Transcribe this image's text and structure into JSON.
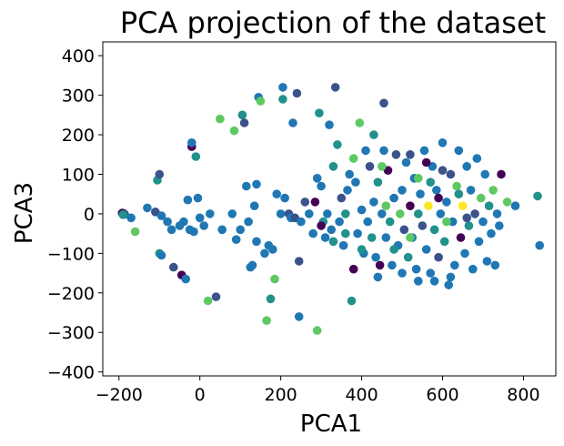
{
  "chart_data": {
    "type": "scatter",
    "title": "PCA projection of the dataset",
    "xlabel": "PCA1",
    "ylabel": "PCA3",
    "xlim": [
      -240,
      880
    ],
    "ylim": [
      -410,
      435
    ],
    "xticks": [
      -200,
      0,
      200,
      400,
      600,
      800
    ],
    "yticks": [
      -400,
      -300,
      -200,
      -100,
      0,
      100,
      200,
      300,
      400
    ],
    "xtick_labels": [
      "−200",
      "0",
      "200",
      "400",
      "600",
      "800"
    ],
    "ytick_labels": [
      "−400",
      "−300",
      "−200",
      "−100",
      "0",
      "100",
      "200",
      "300",
      "400"
    ],
    "grid": false,
    "colormap": "viridis",
    "colors": {
      "dark_purple": "#440154",
      "indigo": "#3b528b",
      "blue": "#1f77b4",
      "teal": "#21918c",
      "green": "#5ec962",
      "yellow": "#fde725"
    },
    "points": [
      [
        -190,
        0,
        1
      ],
      [
        -188,
        1,
        2
      ],
      [
        -186,
        -1,
        1
      ],
      [
        -192,
        2,
        0
      ],
      [
        -190,
        -2,
        3
      ],
      [
        -170,
        -10,
        2
      ],
      [
        -160,
        -45,
        4
      ],
      [
        -130,
        15,
        2
      ],
      [
        -110,
        5,
        1
      ],
      [
        -105,
        85,
        3
      ],
      [
        -100,
        100,
        1
      ],
      [
        -95,
        -5,
        2
      ],
      [
        -100,
        -100,
        3
      ],
      [
        -95,
        -105,
        2
      ],
      [
        -80,
        -20,
        2
      ],
      [
        -70,
        -40,
        2
      ],
      [
        -65,
        -135,
        1
      ],
      [
        -50,
        -30,
        2
      ],
      [
        -45,
        -155,
        0
      ],
      [
        -40,
        -20,
        2
      ],
      [
        -35,
        -165,
        2
      ],
      [
        -30,
        35,
        2
      ],
      [
        -25,
        -40,
        2
      ],
      [
        -20,
        170,
        0
      ],
      [
        -20,
        180,
        2
      ],
      [
        -15,
        -45,
        2
      ],
      [
        -10,
        145,
        3
      ],
      [
        -5,
        40,
        2
      ],
      [
        0,
        -10,
        2
      ],
      [
        10,
        -30,
        2
      ],
      [
        20,
        -220,
        4
      ],
      [
        25,
        0,
        2
      ],
      [
        40,
        -210,
        1
      ],
      [
        50,
        240,
        4
      ],
      [
        55,
        -40,
        2
      ],
      [
        80,
        0,
        2
      ],
      [
        85,
        210,
        4
      ],
      [
        90,
        -65,
        2
      ],
      [
        100,
        -40,
        2
      ],
      [
        105,
        250,
        3
      ],
      [
        110,
        230,
        1
      ],
      [
        115,
        70,
        2
      ],
      [
        120,
        -20,
        2
      ],
      [
        125,
        -135,
        2
      ],
      [
        130,
        -130,
        2
      ],
      [
        135,
        20,
        2
      ],
      [
        140,
        -70,
        2
      ],
      [
        145,
        295,
        2
      ],
      [
        150,
        285,
        4
      ],
      [
        140,
        75,
        2
      ],
      [
        160,
        -100,
        2
      ],
      [
        165,
        -270,
        4
      ],
      [
        170,
        -80,
        2
      ],
      [
        175,
        -215,
        3
      ],
      [
        180,
        -90,
        2
      ],
      [
        185,
        -165,
        4
      ],
      [
        190,
        50,
        2
      ],
      [
        200,
        0,
        2
      ],
      [
        205,
        320,
        2
      ],
      [
        205,
        290,
        3
      ],
      [
        210,
        40,
        2
      ],
      [
        220,
        0,
        1
      ],
      [
        225,
        -10,
        2
      ],
      [
        230,
        230,
        2
      ],
      [
        235,
        -10,
        1
      ],
      [
        240,
        305,
        1
      ],
      [
        245,
        -260,
        2
      ],
      [
        245,
        -120,
        1
      ],
      [
        250,
        -20,
        2
      ],
      [
        260,
        30,
        1
      ],
      [
        270,
        0,
        2
      ],
      [
        280,
        -50,
        2
      ],
      [
        285,
        30,
        0
      ],
      [
        290,
        -295,
        4
      ],
      [
        295,
        255,
        3
      ],
      [
        300,
        70,
        2
      ],
      [
        305,
        -20,
        3
      ],
      [
        310,
        -60,
        2
      ],
      [
        315,
        0,
        2
      ],
      [
        320,
        225,
        2
      ],
      [
        325,
        -40,
        2
      ],
      [
        330,
        -70,
        3
      ],
      [
        335,
        320,
        1
      ],
      [
        340,
        175,
        3
      ],
      [
        345,
        -20,
        2
      ],
      [
        350,
        40,
        1
      ],
      [
        355,
        -80,
        2
      ],
      [
        360,
        0,
        3
      ],
      [
        365,
        60,
        2
      ],
      [
        370,
        100,
        2
      ],
      [
        375,
        -220,
        3
      ],
      [
        380,
        140,
        4
      ],
      [
        380,
        -140,
        0
      ],
      [
        385,
        80,
        2
      ],
      [
        390,
        -50,
        2
      ],
      [
        395,
        230,
        4
      ],
      [
        400,
        10,
        2
      ],
      [
        405,
        -100,
        2
      ],
      [
        410,
        160,
        2
      ],
      [
        415,
        -20,
        2
      ],
      [
        420,
        120,
        1
      ],
      [
        425,
        -60,
        3
      ],
      [
        430,
        30,
        2
      ],
      [
        435,
        -110,
        2
      ],
      [
        440,
        80,
        3
      ],
      [
        445,
        -130,
        0
      ],
      [
        450,
        0,
        2
      ],
      [
        455,
        160,
        2
      ],
      [
        455,
        280,
        1
      ],
      [
        460,
        -60,
        2
      ],
      [
        465,
        110,
        0
      ],
      [
        470,
        -20,
        3
      ],
      [
        475,
        -130,
        2
      ],
      [
        480,
        40,
        2
      ],
      [
        485,
        150,
        1
      ],
      [
        490,
        -80,
        2
      ],
      [
        495,
        0,
        4
      ],
      [
        500,
        60,
        2
      ],
      [
        505,
        -40,
        1
      ],
      [
        510,
        130,
        2
      ],
      [
        515,
        -110,
        3
      ],
      [
        520,
        20,
        0
      ],
      [
        525,
        -60,
        2
      ],
      [
        530,
        90,
        2
      ],
      [
        535,
        -140,
        2
      ],
      [
        540,
        0,
        3
      ],
      [
        545,
        50,
        2
      ],
      [
        550,
        -30,
        1
      ],
      [
        555,
        160,
        2
      ],
      [
        560,
        -90,
        2
      ],
      [
        565,
        20,
        5
      ],
      [
        570,
        -150,
        2
      ],
      [
        575,
        120,
        2
      ],
      [
        580,
        -40,
        3
      ],
      [
        585,
        60,
        2
      ],
      [
        590,
        -110,
        1
      ],
      [
        595,
        0,
        2
      ],
      [
        600,
        180,
        2
      ],
      [
        605,
        -70,
        3
      ],
      [
        610,
        30,
        2
      ],
      [
        615,
        -180,
        2
      ],
      [
        620,
        100,
        1
      ],
      [
        625,
        -20,
        2
      ],
      [
        630,
        -130,
        2
      ],
      [
        635,
        70,
        4
      ],
      [
        640,
        160,
        2
      ],
      [
        645,
        -60,
        0
      ],
      [
        650,
        20,
        5
      ],
      [
        655,
        -100,
        2
      ],
      [
        660,
        120,
        2
      ],
      [
        665,
        -30,
        3
      ],
      [
        670,
        60,
        2
      ],
      [
        675,
        -140,
        2
      ],
      [
        680,
        0,
        1
      ],
      [
        685,
        140,
        2
      ],
      [
        690,
        -70,
        2
      ],
      [
        695,
        40,
        4
      ],
      [
        700,
        -20,
        2
      ],
      [
        705,
        100,
        2
      ],
      [
        710,
        -120,
        2
      ],
      [
        715,
        20,
        3
      ],
      [
        720,
        -50,
        2
      ],
      [
        725,
        60,
        4
      ],
      [
        730,
        -130,
        2
      ],
      [
        735,
        0,
        2
      ],
      [
        740,
        -30,
        2
      ],
      [
        745,
        100,
        0
      ],
      [
        760,
        30,
        4
      ],
      [
        780,
        20,
        2
      ],
      [
        835,
        45,
        3
      ],
      [
        840,
        -80,
        2
      ],
      [
        430,
        200,
        3
      ],
      [
        520,
        150,
        1
      ],
      [
        540,
        90,
        4
      ],
      [
        560,
        130,
        0
      ],
      [
        570,
        80,
        3
      ],
      [
        600,
        110,
        1
      ],
      [
        610,
        -20,
        4
      ],
      [
        590,
        40,
        0
      ],
      [
        640,
        50,
        3
      ],
      [
        660,
        -10,
        1
      ],
      [
        520,
        -60,
        4
      ],
      [
        480,
        -90,
        3
      ],
      [
        460,
        20,
        4
      ],
      [
        540,
        -170,
        2
      ],
      [
        580,
        -170,
        2
      ],
      [
        620,
        -160,
        2
      ],
      [
        500,
        -150,
        2
      ],
      [
        440,
        -160,
        2
      ],
      [
        400,
        -90,
        3
      ],
      [
        360,
        -50,
        3
      ],
      [
        300,
        -30,
        0
      ],
      [
        290,
        90,
        2
      ],
      [
        330,
        120,
        3
      ],
      [
        450,
        120,
        4
      ]
    ]
  }
}
